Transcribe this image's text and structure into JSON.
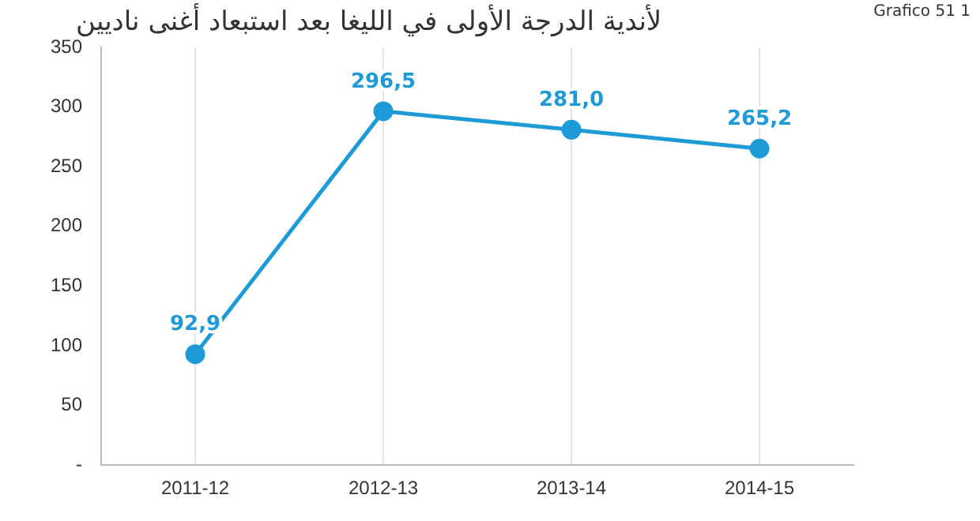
{
  "chart_data": {
    "type": "line",
    "title": "لأندية الدرجة الأولى في الليغا بعد استبعاد أغنى ناديين",
    "annotations": [
      "Grafico 51 1"
    ],
    "categories": [
      "2011-12",
      "2012-13",
      "2013-14",
      "2014-15"
    ],
    "series": [
      {
        "color": "#1e9ad6",
        "values": [
          92.9,
          296.5,
          281.0,
          265.2
        ],
        "value_labels": [
          "92,9",
          "296,5",
          "281,0",
          "265,2"
        ]
      }
    ],
    "ylim": [
      0,
      350
    ],
    "yticks": [
      {
        "value": 0,
        "label": "-"
      },
      50,
      100,
      150,
      200,
      250,
      300,
      350
    ],
    "grid": "x",
    "marker": "circle",
    "legend": false
  }
}
